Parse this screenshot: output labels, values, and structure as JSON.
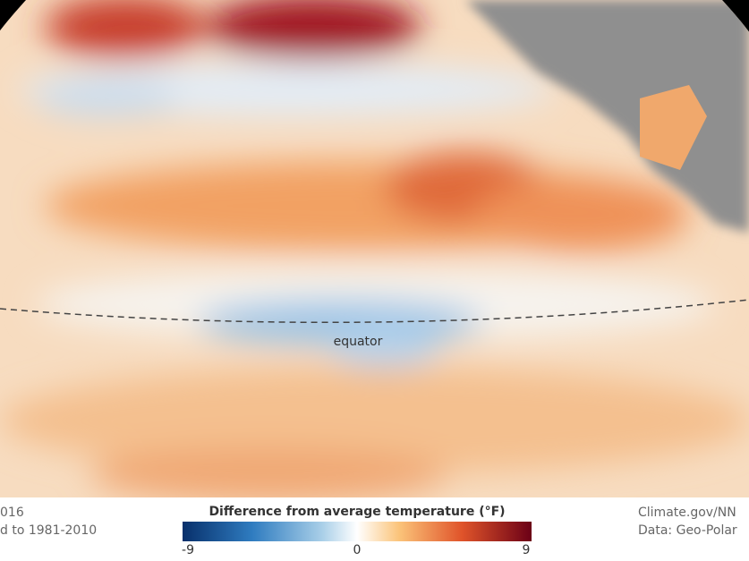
{
  "map": {
    "label": "equator"
  },
  "credit_left": [
    "016",
    "d to 1981-2010"
  ],
  "credit_right": [
    "Climate.gov/NN",
    "Data: Geo-Polar"
  ],
  "legend": {
    "title": "Difference from average temperature (°F)",
    "ticks": [
      -9,
      0,
      9
    ]
  }
}
